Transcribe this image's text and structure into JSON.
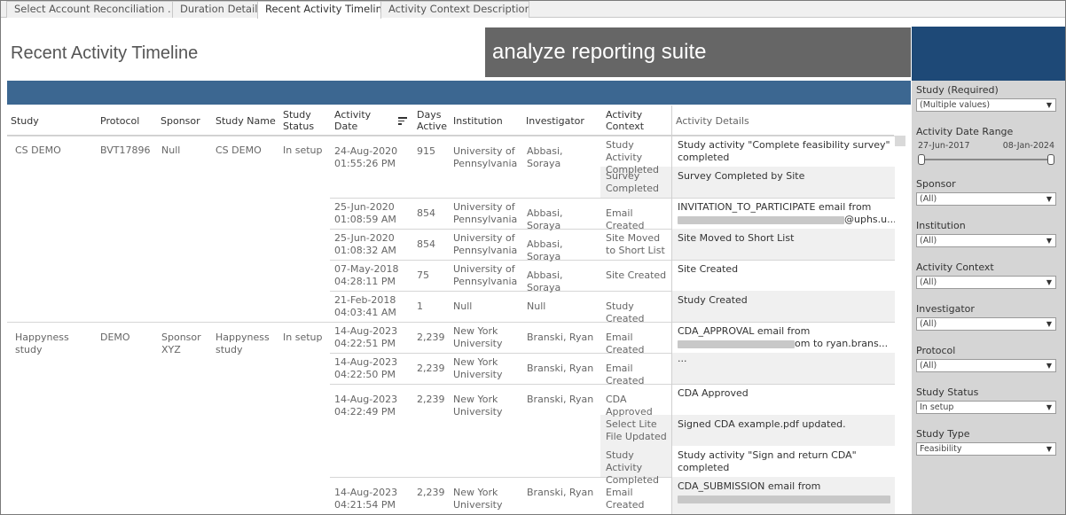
{
  "tabs": [
    "Select Account Reconciliation ...",
    "Duration Details",
    "Recent Activity Timeline",
    "Activity Context Descriptions"
  ],
  "active_tab": 2,
  "header": {
    "title": "Recent Activity Timeline",
    "brand": "analyze reporting suite"
  },
  "columns": {
    "study": "Study",
    "protocol": "Protocol",
    "sponsor": "Sponsor",
    "study_name": "Study Name",
    "study_status": "Study Status",
    "activity_date": "Activity Date",
    "days_active": "Days Active",
    "institution": "Institution",
    "investigator": "Investigator",
    "activity_context": "Activity Context",
    "activity_details": "Activity Details"
  },
  "groups": [
    {
      "study": "CS DEMO",
      "protocol": "BVT17896",
      "sponsor": "Null",
      "study_name": "CS DEMO",
      "status": "In setup"
    },
    {
      "study": "Happyness study",
      "protocol": "DEMO",
      "sponsor": "Sponsor XYZ",
      "study_name": "Happyness study",
      "status": "In setup"
    }
  ],
  "rows": [
    {
      "date": "24-Aug-2020",
      "time": "01:55:26 PM",
      "days": "915",
      "institution": "University of Pennsylvania",
      "investigator": "Abbasi, Soraya"
    },
    {
      "date": "25-Jun-2020",
      "time": "01:08:59 AM",
      "days": "854",
      "institution": "University of Pennsylvania",
      "investigator": "Abbasi, Soraya"
    },
    {
      "date": "25-Jun-2020",
      "time": "01:08:32 AM",
      "days": "854",
      "institution": "University of Pennsylvania",
      "investigator": "Abbasi, Soraya"
    },
    {
      "date": "07-May-2018",
      "time": "04:28:11 PM",
      "days": "75",
      "institution": "University of Pennsylvania",
      "investigator": "Abbasi, Soraya"
    },
    {
      "date": "21-Feb-2018",
      "time": "04:03:41 AM",
      "days": "1",
      "institution": "Null",
      "investigator": "Null"
    },
    {
      "date": "14-Aug-2023",
      "time": "04:22:51 PM",
      "days": "2,239",
      "institution": "New York University",
      "investigator": "Branski, Ryan"
    },
    {
      "date": "14-Aug-2023",
      "time": "04:22:50 PM",
      "days": "2,239",
      "institution": "New York University",
      "investigator": "Branski, Ryan"
    },
    {
      "date": "14-Aug-2023",
      "time": "04:22:49 PM",
      "days": "2,239",
      "institution": "New York University",
      "investigator": "Branski, Ryan"
    },
    {
      "date": "14-Aug-2023",
      "time": "04:21:54 PM",
      "days": "2,239",
      "institution": "New York University",
      "investigator": "Branski, Ryan"
    }
  ],
  "activities": [
    {
      "context": "Study Activity Completed",
      "detail": "Study activity \"Complete feasibility survey\" completed"
    },
    {
      "context": "Survey Completed by...",
      "detail": "Survey Completed by Site"
    },
    {
      "context": "Email Created",
      "detail": "INVITATION_TO_PARTICIPATE email from",
      "detail2": "@uphs.u..."
    },
    {
      "context": "Site Moved to Short List",
      "detail": "Site Moved to Short List"
    },
    {
      "context": "Site Created",
      "detail": "Site Created"
    },
    {
      "context": "Study Created",
      "detail": "Study Created"
    },
    {
      "context": "Email Created",
      "detail": "CDA_APPROVAL email from",
      "detail2": "om to ryan.brans..."
    },
    {
      "context": "Email Created",
      "detail": "..."
    },
    {
      "context": "CDA Approved",
      "detail": "CDA Approved"
    },
    {
      "context": "Select Lite File Updated",
      "detail": "Signed CDA example.pdf updated."
    },
    {
      "context": "Study Activity Completed",
      "detail": "Study activity \"Sign and return CDA\" completed"
    },
    {
      "context": "Email Created",
      "detail": "CDA_SUBMISSION email from"
    }
  ],
  "filters": {
    "study": {
      "label": "Study (Required)",
      "value": "(Multiple values)"
    },
    "date_range": {
      "label": "Activity Date Range",
      "start": "27-Jun-2017",
      "end": "08-Jan-2024"
    },
    "sponsor": {
      "label": "Sponsor",
      "value": "(All)"
    },
    "institution": {
      "label": "Institution",
      "value": "(All)"
    },
    "activity_context": {
      "label": "Activity Context",
      "value": "(All)"
    },
    "investigator": {
      "label": "Investigator",
      "value": "(All)"
    },
    "protocol": {
      "label": "Protocol",
      "value": "(All)"
    },
    "study_status": {
      "label": "Study Status",
      "value": "In setup"
    },
    "study_type": {
      "label": "Study Type",
      "value": "Feasibility"
    }
  },
  "colors": {
    "header_blue": "#3c6791",
    "panel_blue": "#1e4977",
    "brand_gray": "#666666",
    "panel_bg": "#d5d5d5"
  }
}
